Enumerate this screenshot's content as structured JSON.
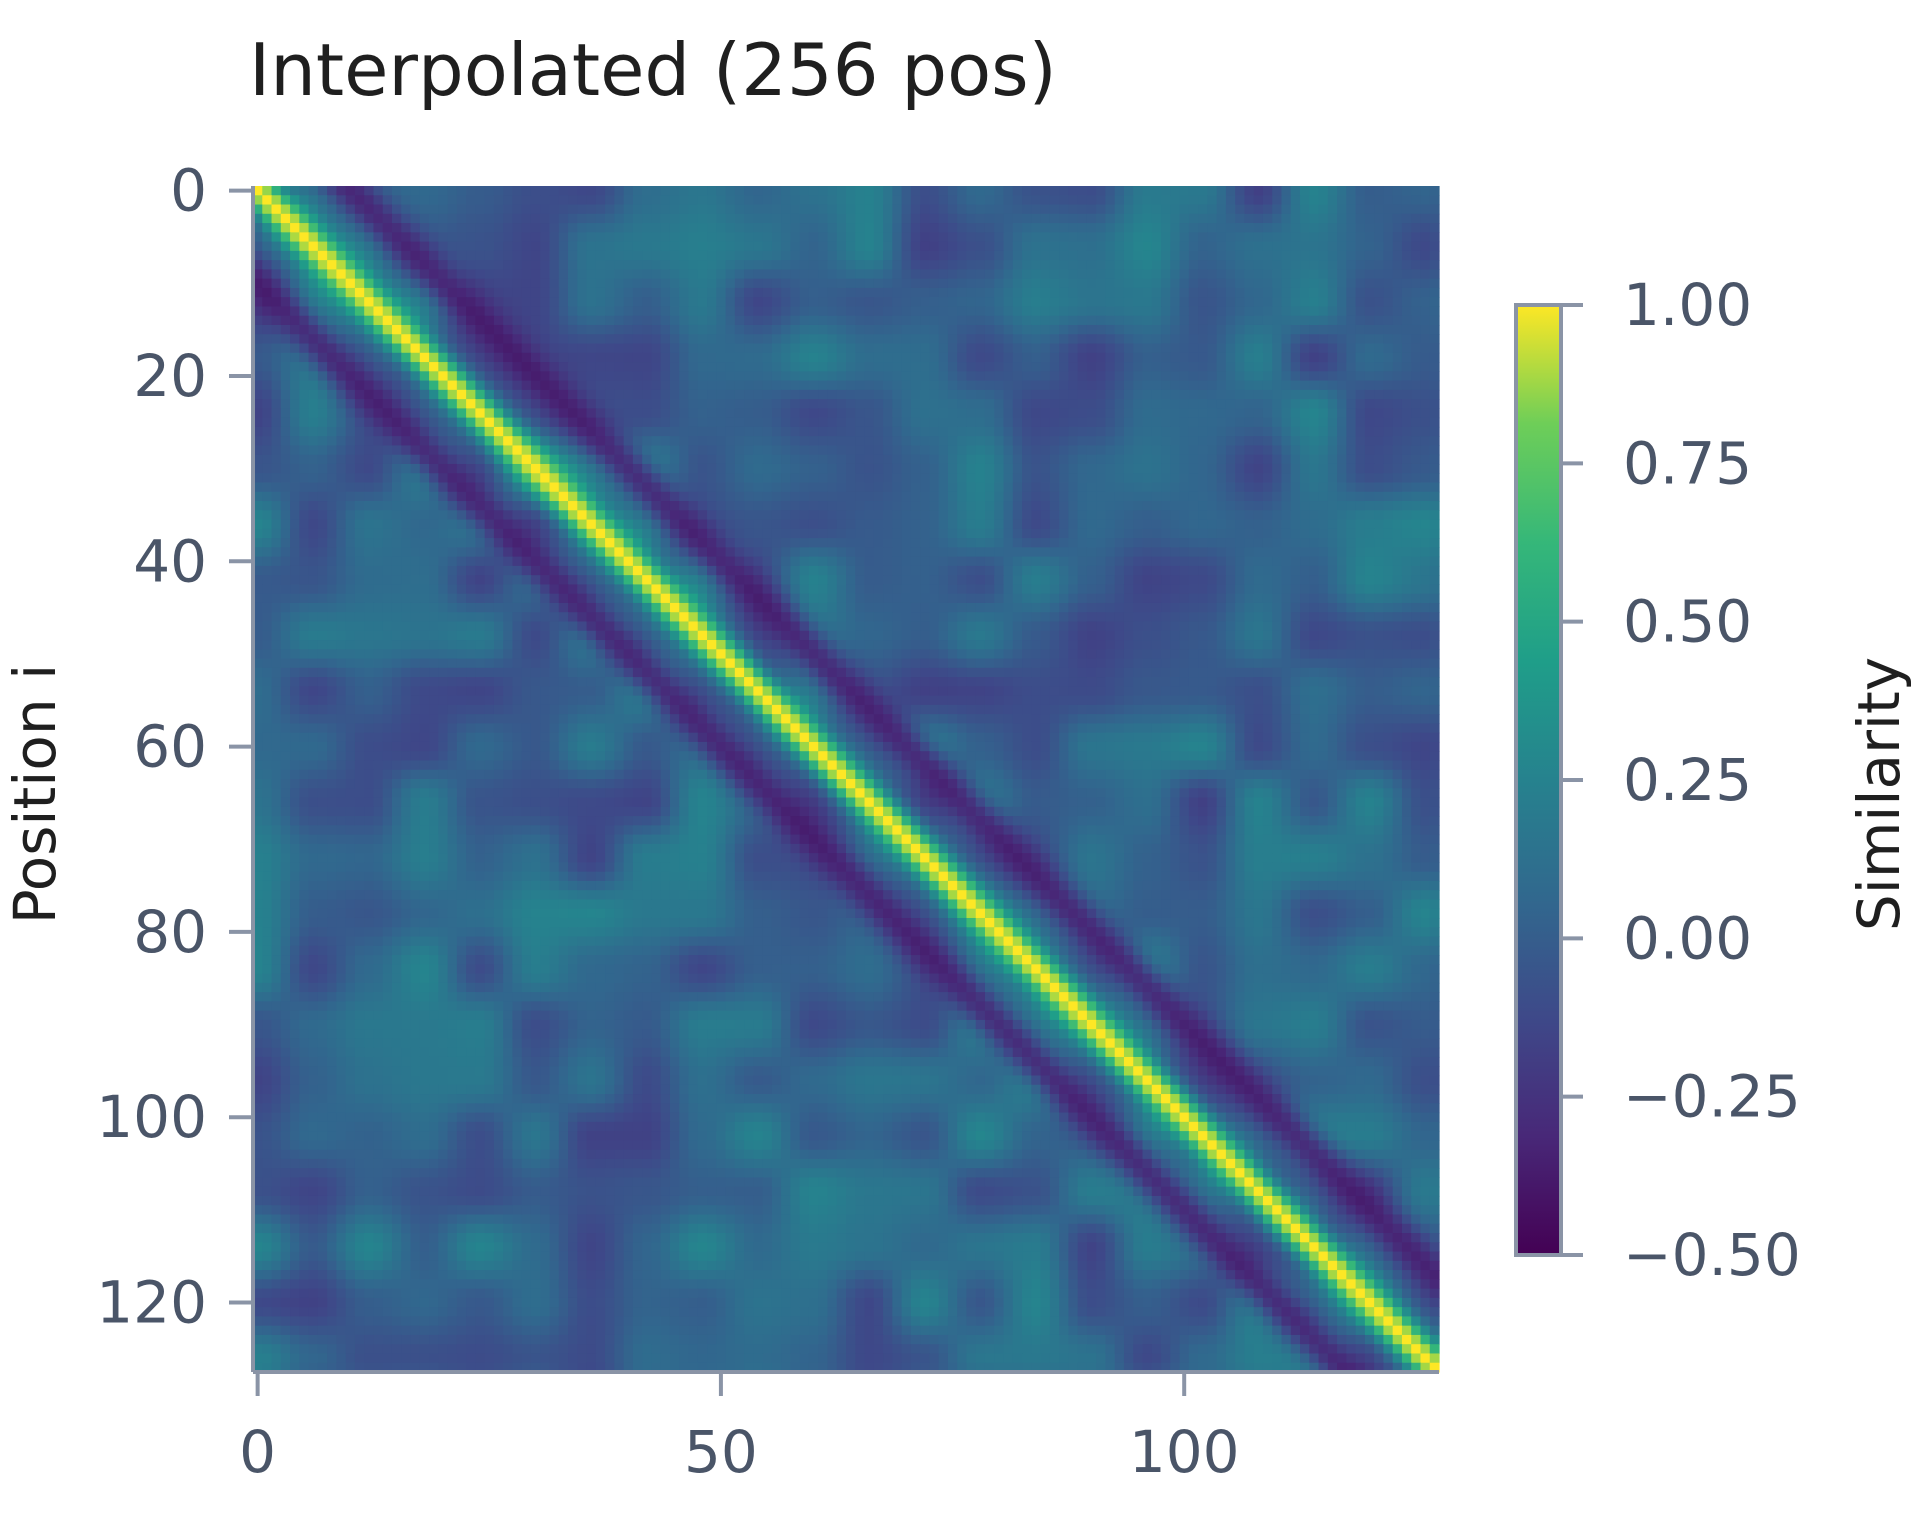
{
  "chart_data": {
    "type": "heatmap",
    "title": "Interpolated (256 pos)",
    "xlabel": "",
    "ylabel": "Position i",
    "size": 128,
    "x_ticks": [
      0,
      50,
      100
    ],
    "y_ticks": [
      0,
      20,
      40,
      60,
      80,
      100,
      120
    ],
    "colorbar": {
      "label": "Similarity",
      "range": [
        -0.5,
        1.0
      ],
      "ticks": [
        "1.00",
        "0.75",
        "0.50",
        "0.25",
        "0.00",
        "−0.25",
        "−0.50"
      ],
      "tick_values": [
        1.0,
        0.75,
        0.5,
        0.25,
        0.0,
        -0.25,
        -0.5
      ],
      "colormap": "viridis"
    },
    "description_values": {
      "diagonal": 1.0,
      "off_diagonal_band_offset": 10,
      "off_diagonal_band_value": -0.45,
      "background_mean": 0.05
    }
  },
  "colors": {
    "axis": "#8a94a6",
    "tick_text": "#4a5568",
    "title": "#1f1f1f"
  }
}
